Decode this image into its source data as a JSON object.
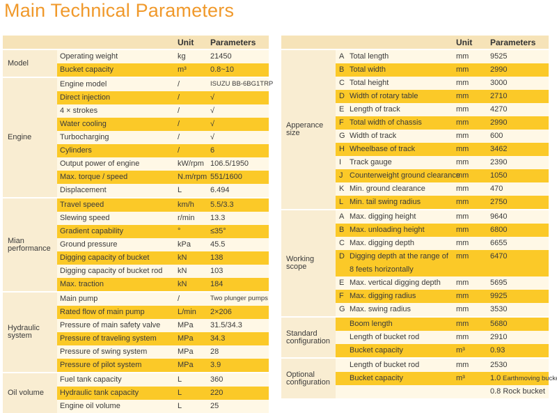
{
  "title": "Main Technical Parameters",
  "left_table": {
    "header": {
      "unit": "Unit",
      "params": "Parameters"
    },
    "groups": [
      {
        "label": "Model",
        "rows": [
          {
            "name": "Operating weight",
            "unit": "kg",
            "value": "21450"
          },
          {
            "name": "Bucket capacity",
            "unit": "m³",
            "value": "0.8~10"
          }
        ]
      },
      {
        "label": "Engine",
        "rows": [
          {
            "name": "Engine model",
            "unit": "/",
            "value": "ISUZU BB-6BG1TRP"
          },
          {
            "name": "Direct injection",
            "unit": "/",
            "value": "√"
          },
          {
            "name": "4 × strokes",
            "unit": "/",
            "value": "√"
          },
          {
            "name": "Water cooling",
            "unit": "/",
            "value": "√"
          },
          {
            "name": "Turbocharging",
            "unit": "/",
            "value": "√"
          },
          {
            "name": "Cylinders",
            "unit": "/",
            "value": "6"
          },
          {
            "name": "Output power of engine",
            "unit": "kW/rpm",
            "value": "106.5/1950"
          },
          {
            "name": "Max. torque / speed",
            "unit": "N.m/rpm",
            "value": "551/1600"
          },
          {
            "name": "Displacement",
            "unit": "L",
            "value": "6.494"
          }
        ]
      },
      {
        "label": "Mian performance",
        "rows": [
          {
            "name": "Travel speed",
            "unit": "km/h",
            "value": "5.5/3.3"
          },
          {
            "name": "Slewing speed",
            "unit": "r/min",
            "value": "13.3"
          },
          {
            "name": "Gradient capability",
            "unit": "°",
            "value": "≤35°"
          },
          {
            "name": "Ground pressure",
            "unit": "kPa",
            "value": "45.5"
          },
          {
            "name": "Digging capacity of bucket",
            "unit": "kN",
            "value": "138"
          },
          {
            "name": "Digging capacity of bucket rod",
            "unit": "kN",
            "value": "103"
          },
          {
            "name": "Max. traction",
            "unit": "kN",
            "value": "184"
          }
        ]
      },
      {
        "label": "Hydraulic system",
        "rows": [
          {
            "name": "Main pump",
            "unit": "/",
            "value": "Two plunger pumps"
          },
          {
            "name": "Rated flow of main pump",
            "unit": "L/min",
            "value": "2×206"
          },
          {
            "name": "Pressure of main safety valve",
            "unit": "MPa",
            "value": "31.5/34.3"
          },
          {
            "name": "Pressure of traveling system",
            "unit": "MPa",
            "value": "34.3"
          },
          {
            "name": "Pressure of swing system",
            "unit": "MPa",
            "value": "28"
          },
          {
            "name": "Pressure of pilot system",
            "unit": "MPa",
            "value": "3.9"
          }
        ]
      },
      {
        "label": "Oil volume",
        "rows": [
          {
            "name": "Fuel tank capacity",
            "unit": "L",
            "value": "360"
          },
          {
            "name": "Hydraulic tank capacity",
            "unit": "L",
            "value": "220"
          },
          {
            "name": "Engine oil volume",
            "unit": "L",
            "value": "25"
          }
        ]
      }
    ]
  },
  "right_table": {
    "header": {
      "unit": "Unit",
      "params": "Parameters"
    },
    "groups": [
      {
        "label": "Apperance size",
        "rows": [
          {
            "letter": "A",
            "name": "Total length",
            "unit": "mm",
            "value": "9525"
          },
          {
            "letter": "B",
            "name": "Total width",
            "unit": "mm",
            "value": "2990"
          },
          {
            "letter": "C",
            "name": "Total height",
            "unit": "mm",
            "value": "3000"
          },
          {
            "letter": "D",
            "name": "Width of rotary table",
            "unit": "mm",
            "value": "2710"
          },
          {
            "letter": "E",
            "name": "Length of track",
            "unit": "mm",
            "value": "4270"
          },
          {
            "letter": "F",
            "name": "Total width of chassis",
            "unit": "mm",
            "value": "2990"
          },
          {
            "letter": "G",
            "name": "Width of track",
            "unit": "mm",
            "value": "600"
          },
          {
            "letter": "H",
            "name": "Wheelbase of track",
            "unit": "mm",
            "value": "3462"
          },
          {
            "letter": "I",
            "name": "Track gauge",
            "unit": "mm",
            "value": "2390"
          },
          {
            "letter": "J",
            "name": "Counterweight ground clearance",
            "unit": "mm",
            "value": "1050"
          },
          {
            "letter": "K",
            "name": "Min. ground clearance",
            "unit": "mm",
            "value": "470"
          },
          {
            "letter": "L",
            "name": "Min. tail swing radius",
            "unit": "mm",
            "value": "2750"
          }
        ]
      },
      {
        "label": "Working scope",
        "rows": [
          {
            "letter": "A",
            "name": "Max. digging height",
            "unit": "mm",
            "value": "9640"
          },
          {
            "letter": "B",
            "name": "Max. unloading height",
            "unit": "mm",
            "value": "6800"
          },
          {
            "letter": "C",
            "name": "Max. digging depth",
            "unit": "mm",
            "value": "6655"
          },
          {
            "letter": "D",
            "name": "Digging depth at the range of",
            "name2": "8 feets horizontally",
            "unit": "mm",
            "value": "6470"
          },
          {
            "letter": "E",
            "name": "Max. vertical digging depth",
            "unit": "mm",
            "value": "5695"
          },
          {
            "letter": "F",
            "name": "Max. digging radius",
            "unit": "mm",
            "value": "9925"
          },
          {
            "letter": "G",
            "name": "Max. swing radius",
            "unit": "mm",
            "value": "3530"
          }
        ]
      },
      {
        "label": "Standard configuration",
        "rows": [
          {
            "letter": "",
            "name": "Boom length",
            "unit": "mm",
            "value": "5680"
          },
          {
            "letter": "",
            "name": "Length of bucket rod",
            "unit": "mm",
            "value": "2910"
          },
          {
            "letter": "",
            "name": "Bucket capacity",
            "unit": "m³",
            "value": "0.93"
          }
        ]
      },
      {
        "label": "Optional configuration",
        "rows": [
          {
            "letter": "",
            "name": "Length of bucket rod",
            "unit": "mm",
            "value": "2530"
          },
          {
            "letter": "",
            "name": "Bucket capacity",
            "unit": "m³",
            "value": "1.0",
            "value_note": "Earthmoving bucket"
          },
          {
            "letter": "",
            "name": "",
            "unit": "",
            "value": "0.8 Rock bucket"
          }
        ]
      }
    ]
  }
}
